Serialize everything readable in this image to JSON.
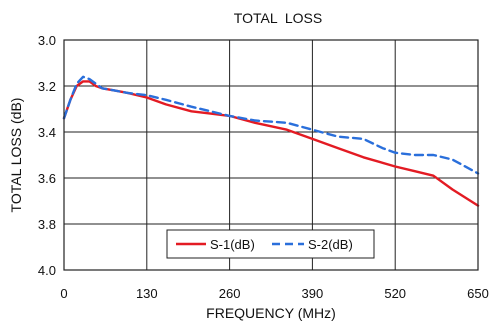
{
  "chart_data": {
    "type": "line",
    "title": "TOTAL  LOSS",
    "xlabel": "FREQUENCY (MHz)",
    "ylabel": "TOTAL LOSS (dB)",
    "xlim": [
      0,
      650
    ],
    "ylim": [
      3.0,
      4.0
    ],
    "y_inverted": true,
    "x_ticks": [
      0,
      130,
      260,
      390,
      520,
      650
    ],
    "x_tick_labels": [
      "0",
      "130",
      "260",
      "390",
      "520",
      "650"
    ],
    "y_ticks": [
      3.0,
      3.2,
      3.4,
      3.6,
      3.8,
      4.0
    ],
    "y_tick_labels": [
      "3.0",
      "3.2",
      "3.4",
      "3.6",
      "3.8",
      "4.0"
    ],
    "grid": true,
    "legend_position": "bottom-center",
    "series": [
      {
        "name": "S-1(dB)",
        "color": "#e31b23",
        "style": "solid",
        "x": [
          0,
          10,
          20,
          30,
          40,
          50,
          60,
          80,
          100,
          130,
          160,
          200,
          230,
          260,
          300,
          350,
          390,
          430,
          470,
          520,
          550,
          580,
          610,
          650
        ],
        "y": [
          3.34,
          3.26,
          3.2,
          3.18,
          3.18,
          3.2,
          3.21,
          3.22,
          3.23,
          3.25,
          3.28,
          3.31,
          3.32,
          3.33,
          3.36,
          3.39,
          3.43,
          3.47,
          3.51,
          3.55,
          3.57,
          3.59,
          3.65,
          3.72
        ]
      },
      {
        "name": "S-2(dB)",
        "color": "#2a6fdb",
        "style": "dashed",
        "x": [
          0,
          10,
          20,
          30,
          40,
          50,
          60,
          80,
          100,
          130,
          160,
          200,
          230,
          260,
          300,
          350,
          390,
          430,
          470,
          500,
          520,
          550,
          580,
          610,
          650
        ],
        "y": [
          3.34,
          3.26,
          3.19,
          3.16,
          3.17,
          3.19,
          3.21,
          3.22,
          3.23,
          3.24,
          3.26,
          3.29,
          3.31,
          3.33,
          3.35,
          3.36,
          3.39,
          3.42,
          3.43,
          3.47,
          3.49,
          3.5,
          3.5,
          3.52,
          3.58
        ]
      }
    ]
  }
}
